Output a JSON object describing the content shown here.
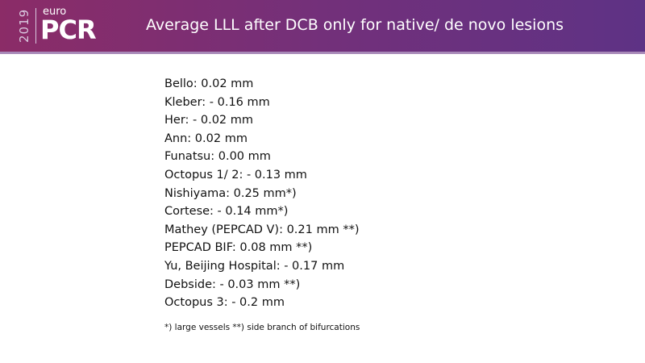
{
  "header": {
    "logo": {
      "year": "2019",
      "prefix": "euro",
      "name": "PCR"
    },
    "title": "Average LLL after DCB only for native/ de novo lesions"
  },
  "list": [
    "Bello: 0.02 mm",
    "Kleber: - 0.16 mm",
    "Her: - 0.02 mm",
    "Ann: 0.02 mm",
    "Funatsu: 0.00 mm",
    "Octopus 1/ 2: - 0.13 mm",
    "Nishiyama: 0.25 mm*)",
    "Cortese: - 0.14 mm*)",
    "Mathey (PEPCAD V): 0.21 mm **)",
    "PEPCAD BIF: 0.08 mm **)",
    "Yu, Beijing Hospital: - 0.17 mm",
    "Debside: - 0.03 mm **)",
    "Octopus 3: - 0.2 mm"
  ],
  "footnote": "*)  large vessels **) side branch of bifurcations"
}
